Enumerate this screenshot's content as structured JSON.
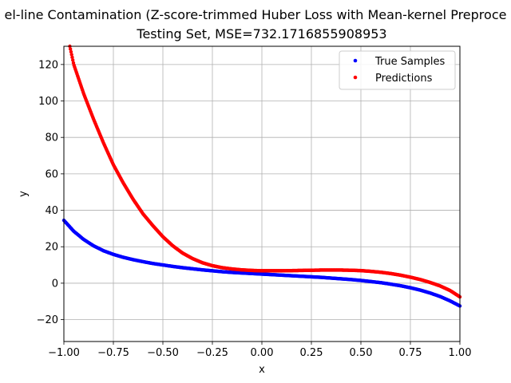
{
  "chart_data": {
    "type": "scatter",
    "title_line1": "el-line Contamination (Z-score-trimmed Huber Loss with Mean-kernel Preproce",
    "title_line2": "Testing Set, MSE=732.1716855908953",
    "xlabel": "x",
    "ylabel": "y",
    "xlim": [
      -1.0,
      1.0
    ],
    "ylim": [
      -32,
      130
    ],
    "xticks": [
      -1.0,
      -0.75,
      -0.5,
      -0.25,
      0.0,
      0.25,
      0.5,
      0.75,
      1.0
    ],
    "xtick_labels": [
      "−1.00",
      "−0.75",
      "−0.50",
      "−0.25",
      "0.00",
      "0.25",
      "0.50",
      "0.75",
      "1.00"
    ],
    "yticks": [
      -20,
      0,
      20,
      40,
      60,
      80,
      100,
      120
    ],
    "ytick_labels": [
      "−20",
      "0",
      "20",
      "40",
      "60",
      "80",
      "100",
      "120"
    ],
    "grid": true,
    "legend_position": "top-right",
    "series": [
      {
        "name": "True Samples",
        "color": "#0000ff",
        "x": [
          -1.0,
          -0.95,
          -0.9,
          -0.85,
          -0.8,
          -0.75,
          -0.7,
          -0.65,
          -0.6,
          -0.55,
          -0.5,
          -0.45,
          -0.4,
          -0.35,
          -0.3,
          -0.25,
          -0.2,
          -0.15,
          -0.1,
          -0.05,
          0.0,
          0.05,
          0.1,
          0.15,
          0.2,
          0.25,
          0.3,
          0.35,
          0.4,
          0.45,
          0.5,
          0.55,
          0.6,
          0.65,
          0.7,
          0.75,
          0.8,
          0.85,
          0.9,
          0.95,
          1.0
        ],
        "y": [
          34.5,
          28.5,
          24.0,
          20.5,
          17.8,
          15.8,
          14.2,
          12.9,
          11.8,
          10.8,
          10.0,
          9.2,
          8.5,
          7.9,
          7.3,
          6.8,
          6.3,
          5.9,
          5.6,
          5.3,
          5.0,
          4.7,
          4.4,
          4.1,
          3.8,
          3.5,
          3.2,
          2.8,
          2.4,
          2.0,
          1.5,
          0.9,
          0.3,
          -0.5,
          -1.4,
          -2.5,
          -3.8,
          -5.4,
          -7.3,
          -9.7,
          -12.5
        ]
      },
      {
        "name": "Predictions",
        "color": "#ff0000",
        "x": [
          -0.97,
          -0.95,
          -0.9,
          -0.85,
          -0.8,
          -0.75,
          -0.7,
          -0.65,
          -0.6,
          -0.55,
          -0.5,
          -0.45,
          -0.4,
          -0.35,
          -0.3,
          -0.25,
          -0.2,
          -0.15,
          -0.1,
          -0.05,
          0.0,
          0.05,
          0.1,
          0.15,
          0.2,
          0.25,
          0.3,
          0.35,
          0.4,
          0.45,
          0.5,
          0.55,
          0.6,
          0.65,
          0.7,
          0.75,
          0.8,
          0.85,
          0.9,
          0.95,
          1.0
        ],
        "y": [
          130.0,
          120.0,
          104.0,
          90.0,
          77.0,
          65.0,
          55.0,
          46.0,
          38.0,
          31.5,
          25.5,
          20.5,
          16.5,
          13.5,
          11.2,
          9.6,
          8.5,
          7.8,
          7.3,
          7.0,
          6.8,
          6.8,
          6.8,
          6.9,
          7.0,
          7.1,
          7.2,
          7.2,
          7.2,
          7.1,
          6.9,
          6.5,
          6.0,
          5.3,
          4.4,
          3.3,
          2.0,
          0.4,
          -1.5,
          -4.0,
          -7.5
        ]
      }
    ]
  }
}
